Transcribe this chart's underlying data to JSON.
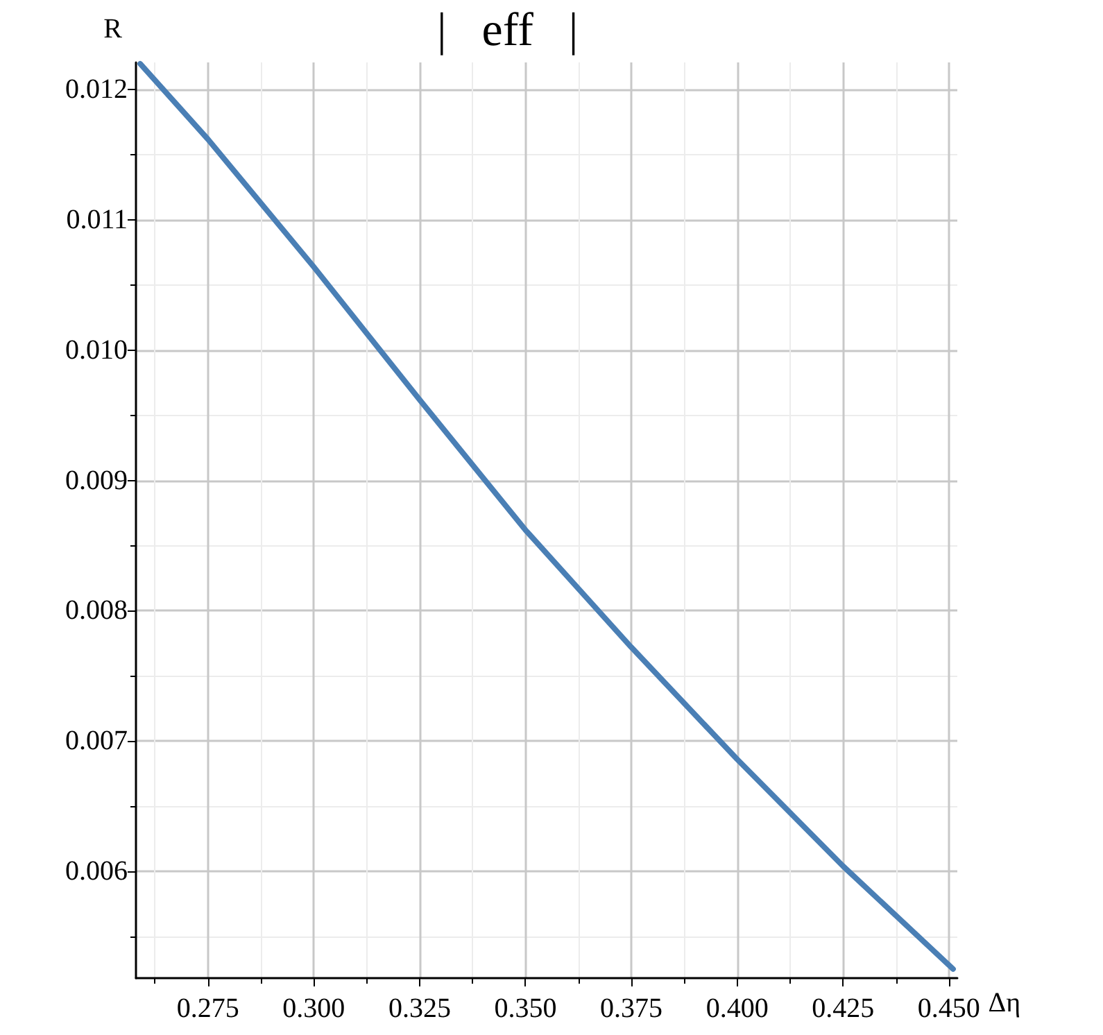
{
  "chart_data": {
    "type": "line",
    "title": "|   eff   |",
    "xlabel": "Δη",
    "ylabel": "R",
    "x": [
      0.259,
      0.275,
      0.3,
      0.325,
      0.35,
      0.375,
      0.4,
      0.425,
      0.451
    ],
    "series": [
      {
        "color": "#4a7fb5",
        "values": [
          0.0122,
          0.01162,
          0.01064,
          0.00962,
          0.00862,
          0.00772,
          0.00686,
          0.00604,
          0.00525
        ]
      }
    ],
    "xlim": [
      0.258,
      0.452
    ],
    "xticks": [
      0.275,
      {
        "value": 0.3,
        "label": "0.300"
      },
      0.325,
      {
        "value": 0.35,
        "label": "0.350"
      },
      0.375,
      {
        "value": 0.4,
        "label": "0.400"
      },
      0.425,
      {
        "value": 0.45,
        "label": "0.450"
      }
    ],
    "ylim": [
      0.00518,
      0.01221
    ],
    "yticks": [
      0.006,
      0.007,
      0.008,
      0.009,
      {
        "value": 0.01,
        "label": "0.010"
      },
      0.011,
      0.012
    ],
    "grid": true,
    "marker": "none",
    "line_style": "solid"
  }
}
